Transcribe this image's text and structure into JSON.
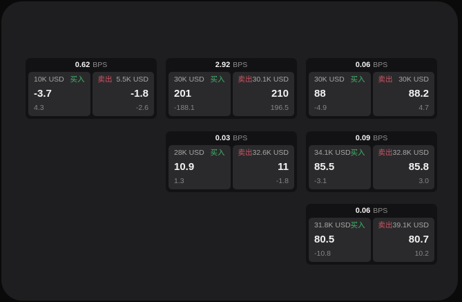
{
  "labels": {
    "bps": "BPS",
    "buy": "买入",
    "sell": "卖出"
  },
  "colors": {
    "buy_green": "#41b469",
    "sell_red": "#ce5463",
    "panel_bg": "#1e1e20",
    "card_bg": "#121214",
    "tile_bg": "#2a2a2c"
  },
  "cards": [
    {
      "bps": "0.62",
      "buy": {
        "amount": "10K USD",
        "price": "-3.7",
        "delta": "4.3"
      },
      "sell": {
        "amount": "5.5K USD",
        "price": "-1.8",
        "delta": "-2.6"
      }
    },
    {
      "bps": "2.92",
      "buy": {
        "amount": "30K USD",
        "price": "201",
        "delta": "-188.1"
      },
      "sell": {
        "amount": "30.1K USD",
        "price": "210",
        "delta": "196.5"
      }
    },
    {
      "bps": "0.06",
      "buy": {
        "amount": "30K USD",
        "price": "88",
        "delta": "-4.9"
      },
      "sell": {
        "amount": "30K USD",
        "price": "88.2",
        "delta": "4.7"
      }
    },
    {
      "bps": "0.03",
      "buy": {
        "amount": "28K USD",
        "price": "10.9",
        "delta": "1.3"
      },
      "sell": {
        "amount": "32.6K USD",
        "price": "11",
        "delta": "-1.8"
      }
    },
    {
      "bps": "0.09",
      "buy": {
        "amount": "34.1K USD",
        "price": "85.5",
        "delta": "-3.1"
      },
      "sell": {
        "amount": "32.8K USD",
        "price": "85.8",
        "delta": "3.0"
      }
    },
    {
      "bps": "0.06",
      "buy": {
        "amount": "31.8K USD",
        "price": "80.5",
        "delta": "-10.8"
      },
      "sell": {
        "amount": "39.1K USD",
        "price": "80.7",
        "delta": "10.2"
      }
    }
  ]
}
